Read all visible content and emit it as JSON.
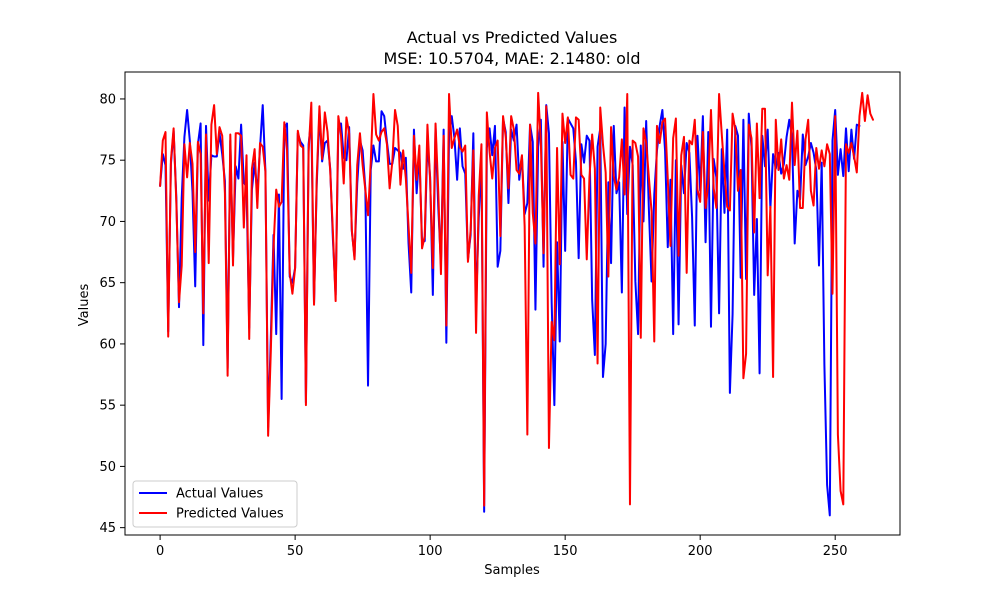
{
  "chart_data": {
    "type": "line",
    "title": "Actual vs Predicted Values",
    "subtitle": "MSE: 10.5704, MAE: 2.1480: old",
    "xlabel": "Samples",
    "ylabel": "Values",
    "xlim": [
      -13,
      274
    ],
    "ylim": [
      44.4,
      82.2
    ],
    "xticks": [
      0,
      50,
      100,
      150,
      200,
      250
    ],
    "yticks": [
      45,
      50,
      55,
      60,
      65,
      70,
      75,
      80
    ],
    "grid": false,
    "legend_position": "lower-left",
    "series": [
      {
        "name": "Actual Values",
        "color": "#0000ff",
        "values": [
          72.9,
          75.5,
          74.6,
          61.0,
          74.7,
          77.4,
          72.0,
          63.0,
          71.9,
          76.9,
          79.1,
          76.6,
          72.4,
          64.7,
          76.3,
          78.0,
          59.9,
          77.8,
          71.7,
          75.4,
          75.3,
          75.3,
          77.2,
          75.5,
          73.3,
          58.0,
          76.6,
          67.0,
          74.5,
          73.5,
          77.9,
          73.2,
          72.8,
          61.3,
          72.6,
          74.8,
          72.3,
          76.0,
          79.5,
          74.1,
          53.2,
          60.5,
          68.9,
          60.8,
          72.2,
          55.5,
          77.6,
          78.0,
          65.5,
          65.0,
          66.2,
          77.2,
          76.5,
          76.2,
          55.2,
          76.3,
          78.4,
          63.3,
          73.0,
          78.8,
          74.9,
          76.4,
          76.6,
          74.3,
          68.5,
          64.0,
          77.6,
          78.0,
          75.2,
          75.0,
          77.7,
          69.2,
          67.1,
          73.1,
          76.6,
          75.8,
          72.7,
          56.6,
          74.2,
          76.2,
          74.9,
          74.9,
          79.0,
          78.6,
          76.5,
          74.7,
          74.7,
          76.0,
          75.8,
          75.6,
          74.3,
          75.2,
          68.2,
          64.2,
          77.5,
          72.3,
          75.6,
          68.3,
          68.4,
          76.5,
          73.6,
          64.0,
          77.6,
          71.2,
          66.5,
          77.5,
          60.1,
          77.0,
          78.6,
          76.8,
          73.4,
          77.6,
          74.5,
          73.9,
          66.9,
          68.9,
          77.2,
          63.0,
          70.3,
          75.1,
          46.3,
          76.0,
          77.6,
          75.4,
          77.8,
          66.3,
          67.6,
          78.4,
          77.3,
          71.5,
          77.5,
          76.6,
          77.9,
          73.4,
          75.3,
          70.6,
          71.5,
          77.9,
          76.5,
          62.8,
          76.1,
          78.3,
          66.3,
          79.5,
          77.2,
          63.4,
          55.0,
          68.3,
          60.2,
          76.5,
          67.6,
          78.4,
          78.0,
          77.6,
          74.9,
          67.0,
          76.3,
          74.8,
          77.0,
          76.6,
          63.6,
          59.1,
          76.1,
          77.6,
          57.3,
          60.0,
          73.2,
          66.6,
          77.8,
          72.3,
          73.2,
          64.2,
          79.3,
          70.6,
          76.1,
          74.6,
          65.1,
          60.8,
          76.2,
          70.0,
          78.2,
          71.0,
          65.1,
          72.2,
          75.8,
          77.8,
          79.1,
          75.8,
          67.9,
          73.4,
          60.8,
          75.0,
          61.6,
          74.6,
          72.3,
          76.4,
          75.6,
          70.4,
          61.5,
          77.0,
          72.5,
          78.6,
          68.3,
          77.3,
          61.4,
          75.1,
          73.6,
          62.5,
          75.9,
          70.7,
          77.5,
          56.0,
          62.4,
          77.8,
          77.0,
          65.4,
          78.3,
          65.3,
          78.8,
          76.1,
          64.0,
          70.2,
          57.6,
          77.0,
          74.5,
          77.5,
          71.1,
          75.5,
          74.3,
          75.6,
          73.9,
          74.7,
          76.9,
          78.3,
          76.9,
          68.2,
          72.5,
          71.8,
          77.1,
          74.6,
          75.3,
          76.4,
          75.6,
          74.2,
          66.4,
          74.8,
          58.3,
          48.5,
          46.0,
          76.6,
          79.1,
          73.8,
          75.9,
          73.7,
          77.6,
          74.1,
          77.5,
          75.1,
          77.9,
          77.8
        ]
      },
      {
        "name": "Predicted Values",
        "color": "#ff0000",
        "values": [
          72.9,
          76.6,
          77.3,
          60.6,
          75.0,
          77.6,
          71.6,
          63.4,
          66.4,
          76.3,
          73.6,
          76.4,
          74.7,
          67.5,
          76.5,
          75.5,
          62.5,
          77.1,
          66.6,
          77.9,
          79.5,
          75.5,
          77.7,
          77.0,
          72.3,
          57.4,
          77.1,
          66.4,
          77.2,
          77.2,
          77.0,
          69.5,
          75.4,
          60.4,
          74.3,
          75.9,
          71.1,
          76.4,
          76.1,
          74.1,
          52.5,
          59.4,
          67.9,
          72.6,
          71.2,
          71.6,
          78.1,
          75.8,
          65.8,
          64.1,
          66.2,
          77.4,
          76.2,
          76.0,
          55.0,
          75.7,
          79.7,
          63.2,
          73.5,
          79.4,
          75.1,
          78.9,
          77.3,
          74.1,
          69.1,
          63.5,
          78.6,
          77.0,
          73.1,
          78.5,
          77.2,
          69.3,
          66.9,
          74.6,
          77.2,
          74.6,
          72.6,
          70.5,
          74.8,
          80.4,
          77.1,
          76.6,
          77.3,
          77.6,
          76.3,
          72.7,
          74.9,
          79.1,
          77.8,
          73.0,
          75.8,
          73.5,
          69.6,
          65.8,
          77.0,
          73.4,
          76.2,
          67.8,
          68.8,
          77.9,
          73.3,
          66.2,
          78.0,
          72.5,
          65.7,
          77.0,
          61.5,
          80.4,
          76.0,
          76.8,
          77.5,
          76.1,
          75.7,
          76.2,
          66.7,
          69.3,
          75.8,
          60.9,
          72.1,
          76.3,
          46.8,
          78.9,
          75.7,
          73.5,
          76.0,
          76.6,
          68.8,
          78.6,
          76.9,
          72.7,
          78.6,
          77.5,
          74.2,
          73.9,
          75.4,
          69.6,
          52.6,
          77.9,
          70.7,
          68.2,
          80.5,
          76.5,
          67.4,
          79.4,
          51.5,
          61.8,
          60.3,
          76.0,
          66.5,
          78.8,
          76.4,
          78.5,
          73.8,
          73.5,
          78.5,
          78.3,
          73.8,
          73.5,
          66.9,
          73.6,
          77.1,
          74.3,
          58.4,
          79.3,
          76.3,
          74.0,
          65.5,
          77.7,
          73.7,
          72.6,
          73.6,
          76.7,
          72.2,
          80.4,
          46.9,
          76.6,
          76.4,
          75.3,
          60.5,
          77.6,
          76.4,
          73.6,
          70.8,
          60.2,
          77.8,
          76.4,
          78.1,
          78.4,
          73.5,
          68.0,
          76.8,
          78.4,
          67.2,
          75.4,
          76.9,
          65.8,
          76.6,
          76.3,
          78.3,
          72.6,
          71.6,
          77.3,
          71.1,
          73.1,
          79.1,
          72.7,
          71.1,
          80.4,
          77.1,
          74.0,
          71.2,
          70.9,
          78.8,
          77.5,
          72.5,
          74.2,
          57.2,
          59.2,
          77.9,
          76.8,
          69.1,
          78.0,
          71.9,
          79.2,
          79.2,
          65.6,
          71.2,
          57.3,
          78.3,
          74.2,
          76.7,
          73.5,
          74.6,
          73.4,
          79.7,
          74.6,
          77.4,
          71.1,
          71.1,
          76.7,
          78.3,
          72.5,
          71.3,
          76.0,
          74.3,
          75.8,
          74.5,
          76.3,
          75.5,
          64.1,
          78.6,
          52.6,
          48.0,
          46.9,
          76.3,
          75.6,
          76.4,
          75.3,
          74.0,
          78.6,
          80.5,
          78.2,
          80.3,
          78.8,
          78.3
        ]
      }
    ]
  }
}
